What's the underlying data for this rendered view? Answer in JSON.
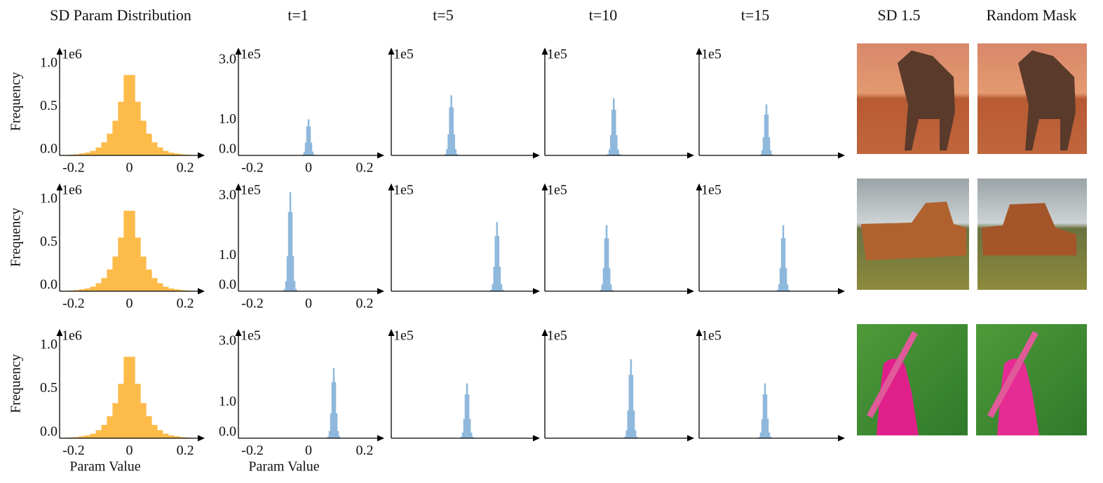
{
  "column_headers": [
    "SD Param Distribution",
    "t=1",
    "t=5",
    "t=10",
    "t=15",
    "SD 1.5",
    "Random Mask"
  ],
  "chart_data": [
    {
      "type": "histogram",
      "color": "#fdbb4a",
      "ylabel": "Frequency",
      "y_offset_label": "1e6",
      "bins": [
        -0.24,
        -0.22,
        -0.2,
        -0.18,
        -0.16,
        -0.14,
        -0.12,
        -0.1,
        -0.08,
        -0.06,
        -0.04,
        -0.02,
        0,
        0.02,
        0.04,
        0.06,
        0.08,
        0.1,
        0.12,
        0.14,
        0.16,
        0.18,
        0.2,
        0.22,
        0.24
      ],
      "counts": [
        0,
        0.005,
        0.01,
        0.02,
        0.03,
        0.05,
        0.09,
        0.15,
        0.25,
        0.4,
        0.62,
        0.93,
        0.93,
        0.62,
        0.4,
        0.25,
        0.15,
        0.09,
        0.05,
        0.03,
        0.02,
        0.01,
        0.005,
        0
      ],
      "xlim": [
        -0.25,
        0.27
      ],
      "xticks": [
        -0.2,
        0,
        0.2
      ],
      "ylim": [
        0,
        1.25
      ],
      "yticks": [
        {
          "value": 0,
          "label": "0.0"
        },
        {
          "value": 0.5,
          "label": "0.5"
        },
        {
          "value": 1,
          "label": "1.0"
        }
      ]
    },
    {
      "type": "histogram",
      "color": "#8fb8dc",
      "y_offset_label": "1e5",
      "bins": [
        -0.0225,
        -0.0175,
        -0.0125,
        -0.0075,
        -0.0025,
        0.0025,
        0.0075,
        0.0125,
        0.0175,
        0.0225
      ],
      "counts": [
        0.02,
        0.12,
        0.42,
        0.96,
        1.2,
        0.96,
        0.42,
        0.12,
        0.02
      ],
      "xlim": [
        -0.25,
        0.27
      ],
      "xticks": [
        -0.2,
        0,
        0.2
      ],
      "ylim": [
        0,
        3.6
      ],
      "yticks": [
        {
          "value": 0,
          "label": "0.0"
        },
        {
          "value": 1,
          "label": "1.0"
        },
        {
          "value": 3,
          "label": "3.0"
        }
      ]
    },
    {
      "type": "histogram",
      "color": "#8fb8dc",
      "y_offset_label": "1e5",
      "bins": [
        -0.0625,
        -0.0575,
        -0.0525,
        -0.0475,
        -0.0425,
        -0.0375,
        -0.0325,
        -0.0275,
        -0.0225,
        -0.0175
      ],
      "counts": [
        0.04,
        0.2,
        0.7,
        1.6,
        2.0,
        1.6,
        0.7,
        0.2,
        0.04
      ],
      "xlim": [
        -0.25,
        0.27
      ],
      "ylim": [
        0,
        3.6
      ]
    },
    {
      "type": "histogram",
      "color": "#8fb8dc",
      "y_offset_label": "1e5",
      "bins": [
        -0.0325,
        -0.0275,
        -0.0225,
        -0.0175,
        -0.0125,
        -0.0075,
        -0.0025,
        0.0025,
        0.0075,
        0.0125
      ],
      "counts": [
        0.04,
        0.19,
        0.67,
        1.52,
        1.9,
        1.52,
        0.67,
        0.19,
        0.04
      ],
      "xlim": [
        -0.25,
        0.27
      ],
      "ylim": [
        0,
        3.6
      ]
    },
    {
      "type": "histogram",
      "color": "#8fb8dc",
      "y_offset_label": "1e5",
      "bins": [
        -0.0325,
        -0.0275,
        -0.0225,
        -0.0175,
        -0.0125,
        -0.0075,
        -0.0025,
        0.0025,
        0.0075,
        0.0125
      ],
      "counts": [
        0.03,
        0.17,
        0.6,
        1.36,
        1.7,
        1.36,
        0.6,
        0.17,
        0.03
      ],
      "xlim": [
        -0.25,
        0.27
      ],
      "ylim": [
        0,
        3.6
      ]
    },
    {
      "type": "histogram",
      "color": "#fdbb4a",
      "ylabel": "Frequency",
      "y_offset_label": "1e6",
      "bins": [
        -0.24,
        -0.22,
        -0.2,
        -0.18,
        -0.16,
        -0.14,
        -0.12,
        -0.1,
        -0.08,
        -0.06,
        -0.04,
        -0.02,
        0,
        0.02,
        0.04,
        0.06,
        0.08,
        0.1,
        0.12,
        0.14,
        0.16,
        0.18,
        0.2,
        0.22,
        0.24
      ],
      "counts": [
        0,
        0.005,
        0.01,
        0.02,
        0.03,
        0.05,
        0.09,
        0.15,
        0.25,
        0.4,
        0.62,
        0.93,
        0.93,
        0.62,
        0.4,
        0.25,
        0.15,
        0.09,
        0.05,
        0.03,
        0.02,
        0.01,
        0.005,
        0
      ],
      "xlim": [
        -0.25,
        0.27
      ],
      "xticks": [
        -0.2,
        0,
        0.2
      ],
      "ylim": [
        0,
        1.25
      ],
      "yticks": [
        {
          "value": 0,
          "label": "0.0"
        },
        {
          "value": 0.5,
          "label": "0.5"
        },
        {
          "value": 1,
          "label": "1.0"
        }
      ]
    },
    {
      "type": "histogram",
      "color": "#8fb8dc",
      "y_offset_label": "1e5",
      "bins": [
        -0.0875,
        -0.0825,
        -0.0775,
        -0.0725,
        -0.0675,
        -0.0625,
        -0.0575,
        -0.0525,
        -0.0475,
        -0.0425
      ],
      "counts": [
        0.07,
        0.33,
        1.16,
        2.64,
        3.3,
        2.64,
        1.16,
        0.33,
        0.07
      ],
      "xlim": [
        -0.25,
        0.27
      ],
      "xticks": [
        -0.2,
        0,
        0.2
      ],
      "ylim": [
        0,
        3.6
      ],
      "yticks": [
        {
          "value": 0,
          "label": "0.0"
        },
        {
          "value": 1,
          "label": "1.0"
        },
        {
          "value": 3,
          "label": "3.0"
        }
      ]
    },
    {
      "type": "histogram",
      "color": "#8fb8dc",
      "y_offset_label": "1e5",
      "bins": [
        0.0975,
        0.1025,
        0.1075,
        0.1125,
        0.1175,
        0.1225,
        0.1275,
        0.1325,
        0.1375,
        0.1425
      ],
      "counts": [
        0.05,
        0.23,
        0.81,
        1.84,
        2.3,
        1.84,
        0.81,
        0.23,
        0.05
      ],
      "xlim": [
        -0.25,
        0.27
      ],
      "ylim": [
        0,
        3.6
      ]
    },
    {
      "type": "histogram",
      "color": "#8fb8dc",
      "y_offset_label": "1e5",
      "bins": [
        -0.0575,
        -0.0525,
        -0.0475,
        -0.0425,
        -0.0375,
        -0.0325,
        -0.0275,
        -0.0225,
        -0.0175,
        -0.0125
      ],
      "counts": [
        0.04,
        0.22,
        0.77,
        1.76,
        2.2,
        1.76,
        0.77,
        0.22,
        0.04
      ],
      "xlim": [
        -0.25,
        0.27
      ],
      "ylim": [
        0,
        3.6
      ]
    },
    {
      "type": "histogram",
      "color": "#8fb8dc",
      "y_offset_label": "1e5",
      "bins": [
        0.0275,
        0.0325,
        0.0375,
        0.0425,
        0.0475,
        0.0525,
        0.0575,
        0.0625,
        0.0675,
        0.0725
      ],
      "counts": [
        0.04,
        0.22,
        0.77,
        1.76,
        2.2,
        1.76,
        0.77,
        0.22,
        0.04
      ],
      "xlim": [
        -0.25,
        0.27
      ],
      "ylim": [
        0,
        3.6
      ]
    },
    {
      "type": "histogram",
      "color": "#fdbb4a",
      "ylabel": "Frequency",
      "xlabel": "Param Value",
      "y_offset_label": "1e6",
      "bins": [
        -0.24,
        -0.22,
        -0.2,
        -0.18,
        -0.16,
        -0.14,
        -0.12,
        -0.1,
        -0.08,
        -0.06,
        -0.04,
        -0.02,
        0,
        0.02,
        0.04,
        0.06,
        0.08,
        0.1,
        0.12,
        0.14,
        0.16,
        0.18,
        0.2,
        0.22,
        0.24
      ],
      "counts": [
        0,
        0.005,
        0.01,
        0.02,
        0.03,
        0.05,
        0.09,
        0.15,
        0.25,
        0.4,
        0.62,
        0.93,
        0.93,
        0.62,
        0.4,
        0.25,
        0.15,
        0.09,
        0.05,
        0.03,
        0.02,
        0.01,
        0.005,
        0
      ],
      "xlim": [
        -0.25,
        0.27
      ],
      "xticks": [
        -0.2,
        0,
        0.2
      ],
      "ylim": [
        0,
        1.25
      ],
      "yticks": [
        {
          "value": 0,
          "label": "0.0"
        },
        {
          "value": 0.5,
          "label": "0.5"
        },
        {
          "value": 1,
          "label": "1.0"
        }
      ]
    },
    {
      "type": "histogram",
      "color": "#8fb8dc",
      "xlabel": "Param Value",
      "y_offset_label": "1e5",
      "bins": [
        0.0675,
        0.0725,
        0.0775,
        0.0825,
        0.0875,
        0.0925,
        0.0975,
        0.1025,
        0.1075,
        0.1125
      ],
      "counts": [
        0.05,
        0.23,
        0.81,
        1.84,
        2.3,
        1.84,
        0.81,
        0.23,
        0.05
      ],
      "xlim": [
        -0.25,
        0.27
      ],
      "xticks": [
        -0.2,
        0,
        0.2
      ],
      "ylim": [
        0,
        3.6
      ],
      "yticks": [
        {
          "value": 0,
          "label": "0.0"
        },
        {
          "value": 1,
          "label": "1.0"
        },
        {
          "value": 3,
          "label": "3.0"
        }
      ]
    },
    {
      "type": "histogram",
      "color": "#8fb8dc",
      "y_offset_label": "1e5",
      "bins": [
        -0.0075,
        -0.0025,
        0.0025,
        0.0075,
        0.0125,
        0.0175,
        0.0225,
        0.0275,
        0.0325,
        0.0375
      ],
      "counts": [
        0.04,
        0.18,
        0.63,
        1.44,
        1.8,
        1.44,
        0.63,
        0.18,
        0.04
      ],
      "xlim": [
        -0.25,
        0.27
      ],
      "ylim": [
        0,
        3.6
      ]
    },
    {
      "type": "histogram",
      "color": "#8fb8dc",
      "y_offset_label": "1e5",
      "bins": [
        0.0275,
        0.0325,
        0.0375,
        0.0425,
        0.0475,
        0.0525,
        0.0575,
        0.0625,
        0.0675,
        0.0725
      ],
      "counts": [
        0.05,
        0.26,
        0.91,
        2.08,
        2.6,
        2.08,
        0.91,
        0.26,
        0.05
      ],
      "xlim": [
        -0.25,
        0.27
      ],
      "ylim": [
        0,
        3.6
      ]
    },
    {
      "type": "histogram",
      "color": "#8fb8dc",
      "y_offset_label": "1e5",
      "bins": [
        -0.0375,
        -0.0325,
        -0.0275,
        -0.0225,
        -0.0175,
        -0.0125,
        -0.0075,
        -0.0025,
        0.0025,
        0.0075
      ],
      "counts": [
        0.04,
        0.18,
        0.63,
        1.44,
        1.8,
        1.44,
        0.63,
        0.18,
        0.04
      ],
      "xlim": [
        -0.25,
        0.27
      ],
      "ylim": [
        0,
        3.6
      ]
    }
  ]
}
